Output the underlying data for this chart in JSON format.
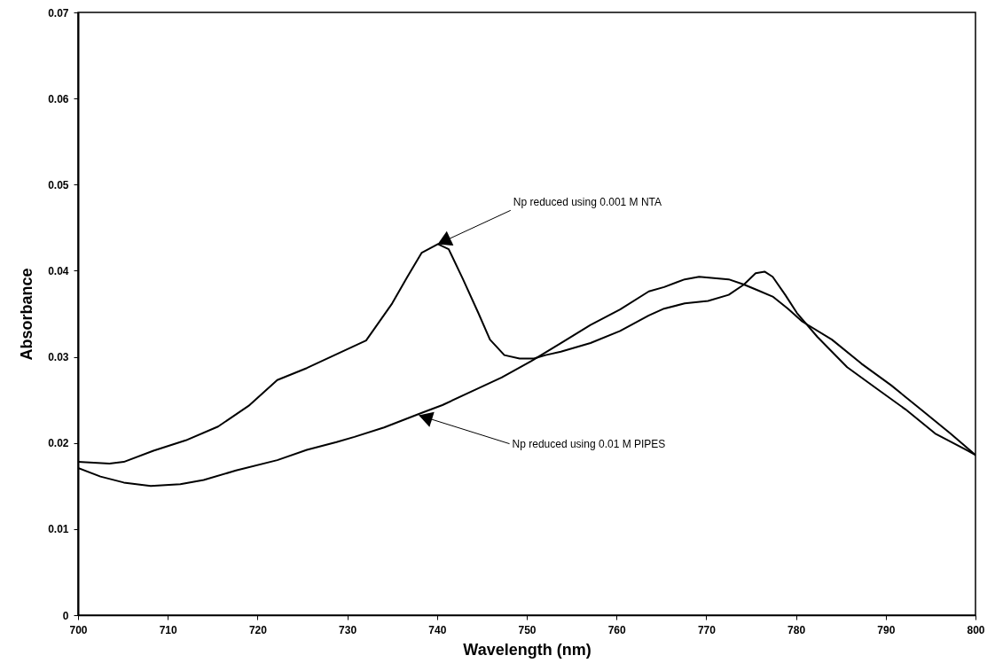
{
  "chart_data": {
    "type": "line",
    "xlabel": "Wavelength (nm)",
    "ylabel": "Absorbance",
    "xlim": [
      700,
      800
    ],
    "xticks": [
      700,
      710,
      720,
      730,
      740,
      750,
      760,
      770,
      780,
      790,
      800
    ],
    "ylim": [
      0,
      0.07
    ],
    "yticks": [
      0,
      0.01,
      0.02,
      0.03,
      0.04,
      0.05,
      0.06,
      0.07
    ],
    "grid": false,
    "marker": "none",
    "line_style": "solid",
    "series": [
      {
        "color": "#000000",
        "x": [
          700,
          703.5,
          705.1,
          708.4,
          712.0,
          715.6,
          719.0,
          722.2,
          725.5,
          728.8,
          732.1,
          735.0,
          736.7,
          738.3,
          740.1,
          741.3,
          742.9,
          744.6,
          745.9,
          747.5,
          749.2,
          750.8,
          752.1,
          753.8,
          757.1,
          760.4,
          763.6,
          765.3,
          767.6,
          770.2,
          772.5,
          774.2,
          775.5,
          776.5,
          777.4,
          778.8,
          780.1,
          782.4,
          785.7,
          789.0,
          792.2,
          795.5,
          798.8,
          800
        ],
        "values": [
          0.0178,
          0.0176,
          0.0178,
          0.0191,
          0.0203,
          0.0219,
          0.0243,
          0.0273,
          0.0287,
          0.0303,
          0.0319,
          0.0362,
          0.0393,
          0.0421,
          0.0431,
          0.0425,
          0.039,
          0.0351,
          0.032,
          0.0302,
          0.0298,
          0.0298,
          0.0302,
          0.0306,
          0.0316,
          0.033,
          0.0348,
          0.0356,
          0.0362,
          0.0365,
          0.0372,
          0.0384,
          0.0397,
          0.0399,
          0.0393,
          0.0372,
          0.0351,
          0.0323,
          0.0288,
          0.0263,
          0.0239,
          0.0211,
          0.0193,
          0.0186
        ]
      },
      {
        "color": "#000000",
        "x": [
          700,
          702.5,
          705.1,
          708.1,
          711.4,
          714.0,
          717.6,
          722.2,
          725.5,
          728.8,
          730.8,
          734.1,
          738.3,
          740.6,
          743.9,
          747.2,
          750.5,
          753.8,
          757.1,
          760.4,
          763.6,
          765.3,
          767.6,
          769.2,
          772.5,
          774.2,
          775.8,
          777.4,
          779.1,
          780.7,
          784.0,
          787.3,
          790.6,
          793.9,
          797.2,
          800
        ],
        "values": [
          0.0171,
          0.0161,
          0.0154,
          0.015,
          0.0152,
          0.0157,
          0.0168,
          0.018,
          0.0192,
          0.0201,
          0.0207,
          0.0218,
          0.0235,
          0.0244,
          0.026,
          0.0276,
          0.0295,
          0.0316,
          0.0337,
          0.0355,
          0.0376,
          0.0381,
          0.039,
          0.0393,
          0.039,
          0.0384,
          0.0377,
          0.037,
          0.0356,
          0.0341,
          0.032,
          0.0292,
          0.0267,
          0.0239,
          0.0211,
          0.0186
        ]
      }
    ],
    "annotations": [
      {
        "text": "Np reduced using 0.001 M NTA",
        "x": 740.1,
        "y": 0.0431
      },
      {
        "text": "Np reduced using 0.01 M PIPES",
        "x": 738,
        "y": 0.0232
      }
    ]
  }
}
